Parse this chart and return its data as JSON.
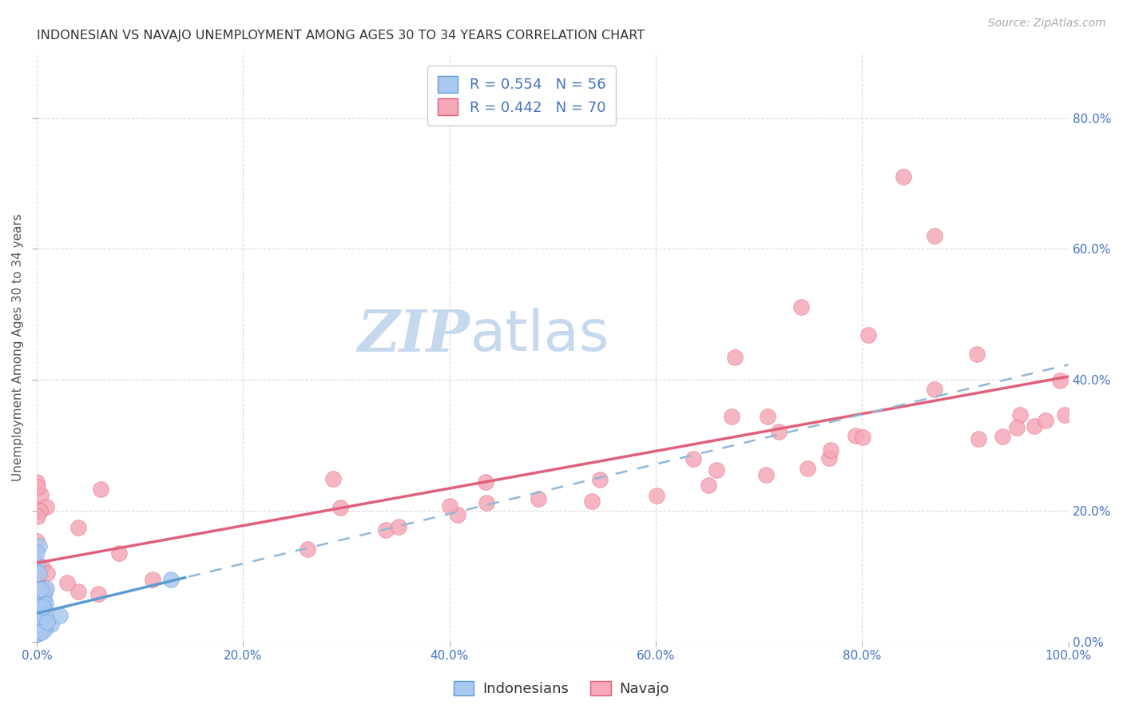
{
  "title": "INDONESIAN VS NAVAJO UNEMPLOYMENT AMONG AGES 30 TO 34 YEARS CORRELATION CHART",
  "source": "Source: ZipAtlas.com",
  "ylabel": "Unemployment Among Ages 30 to 34 years",
  "xlim": [
    0,
    1.0
  ],
  "ylim": [
    0,
    0.9
  ],
  "xtick_vals": [
    0.0,
    0.2,
    0.4,
    0.6,
    0.8,
    1.0
  ],
  "ytick_vals": [
    0.0,
    0.2,
    0.4,
    0.6,
    0.8
  ],
  "xtick_labels": [
    "0.0%",
    "20.0%",
    "40.0%",
    "60.0%",
    "80.0%",
    "100.0%"
  ],
  "ytick_labels": [
    "0.0%",
    "20.0%",
    "40.0%",
    "60.0%",
    "80.0%"
  ],
  "background_color": "#ffffff",
  "grid_color": "#cccccc",
  "watermark_zip": "ZIP",
  "watermark_atlas": "atlas",
  "watermark_color_zip": "#c5d8ed",
  "watermark_color_atlas": "#c5d8ed",
  "indonesian_color": "#aac8f0",
  "indonesian_color_dark": "#5b9bd5",
  "navajo_color": "#f5a8b8",
  "navajo_color_dark": "#e0607a",
  "legend_label_1": "R = 0.554   N = 56",
  "legend_label_2": "R = 0.442   N = 70",
  "legend_color_text": "#4472c4",
  "title_fontsize": 11.5,
  "axis_label_fontsize": 11,
  "tick_fontsize": 11,
  "legend_fontsize": 13,
  "source_fontsize": 10,
  "watermark_fontsize": 52
}
